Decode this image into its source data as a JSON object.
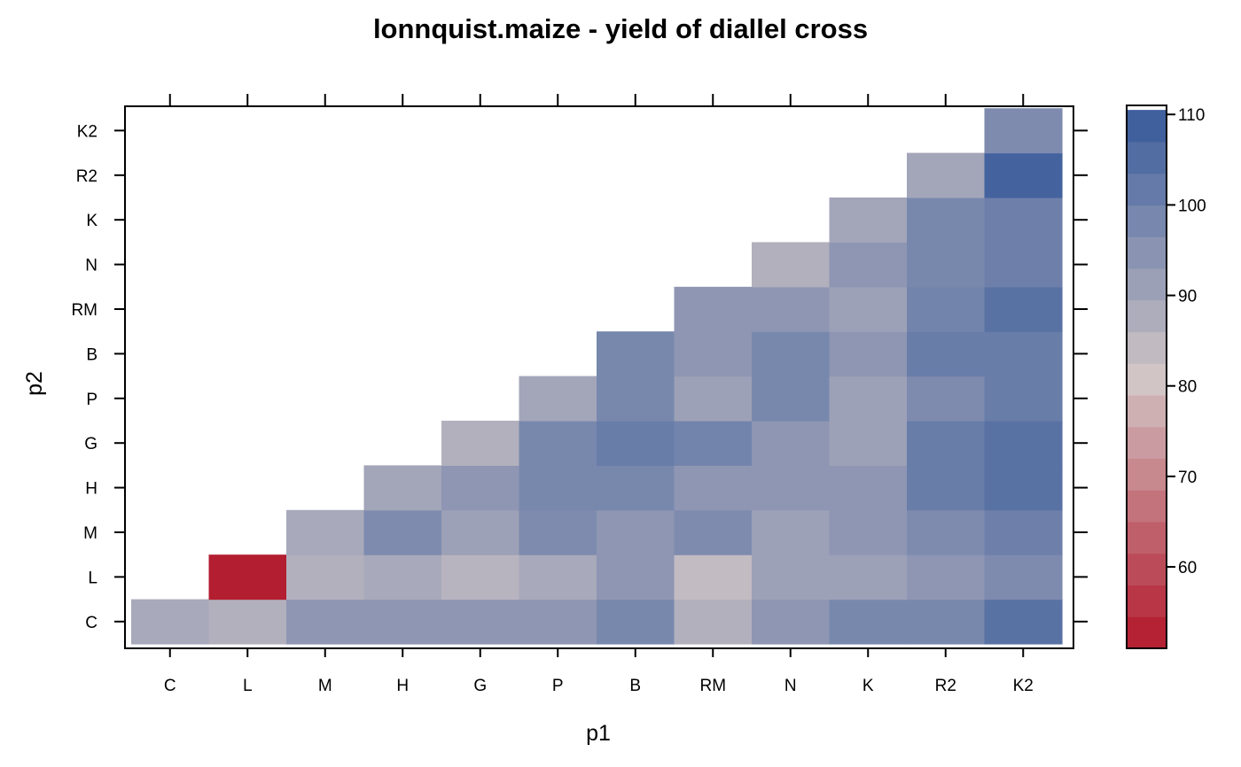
{
  "chart_data": {
    "type": "heatmap",
    "title": "lonnquist.maize - yield of diallel cross",
    "xlabel": "p1",
    "ylabel": "p2",
    "x_categories": [
      "C",
      "L",
      "M",
      "H",
      "G",
      "P",
      "B",
      "RM",
      "N",
      "K",
      "R2",
      "K2"
    ],
    "y_categories": [
      "C",
      "L",
      "M",
      "H",
      "G",
      "P",
      "B",
      "RM",
      "N",
      "K",
      "R2",
      "K2"
    ],
    "colorbar": {
      "ticks": [
        60,
        70,
        80,
        90,
        100,
        110
      ],
      "range": [
        51,
        111
      ],
      "low_color": "#b2182b",
      "mid_color": "#d2c6c6",
      "high_color": "#34589a"
    },
    "values": [
      [
        89,
        87,
        94,
        94,
        94,
        94,
        98,
        87,
        94,
        98,
        98,
        104
      ],
      [
        null,
        52,
        87,
        89,
        86,
        89,
        94,
        84,
        91,
        91,
        94,
        97
      ],
      [
        null,
        null,
        89,
        97,
        91,
        97,
        94,
        97,
        91,
        94,
        97,
        100
      ],
      [
        null,
        null,
        null,
        90,
        94,
        98,
        98,
        94,
        94,
        94,
        101,
        104
      ],
      [
        null,
        null,
        null,
        null,
        87,
        98,
        101,
        99,
        94,
        91,
        101,
        104
      ],
      [
        null,
        null,
        null,
        null,
        null,
        90,
        98,
        91,
        98,
        91,
        97,
        101
      ],
      [
        null,
        null,
        null,
        null,
        null,
        null,
        98,
        94,
        98,
        94,
        101,
        101
      ],
      [
        null,
        null,
        null,
        null,
        null,
        null,
        null,
        94,
        94,
        91,
        99,
        104
      ],
      [
        null,
        null,
        null,
        null,
        null,
        null,
        null,
        null,
        87,
        94,
        98,
        100
      ],
      [
        null,
        null,
        null,
        null,
        null,
        null,
        null,
        null,
        null,
        90,
        98,
        100
      ],
      [
        null,
        null,
        null,
        null,
        null,
        null,
        null,
        null,
        null,
        null,
        90,
        108
      ],
      [
        null,
        null,
        null,
        null,
        null,
        null,
        null,
        null,
        null,
        null,
        null,
        97
      ]
    ]
  }
}
